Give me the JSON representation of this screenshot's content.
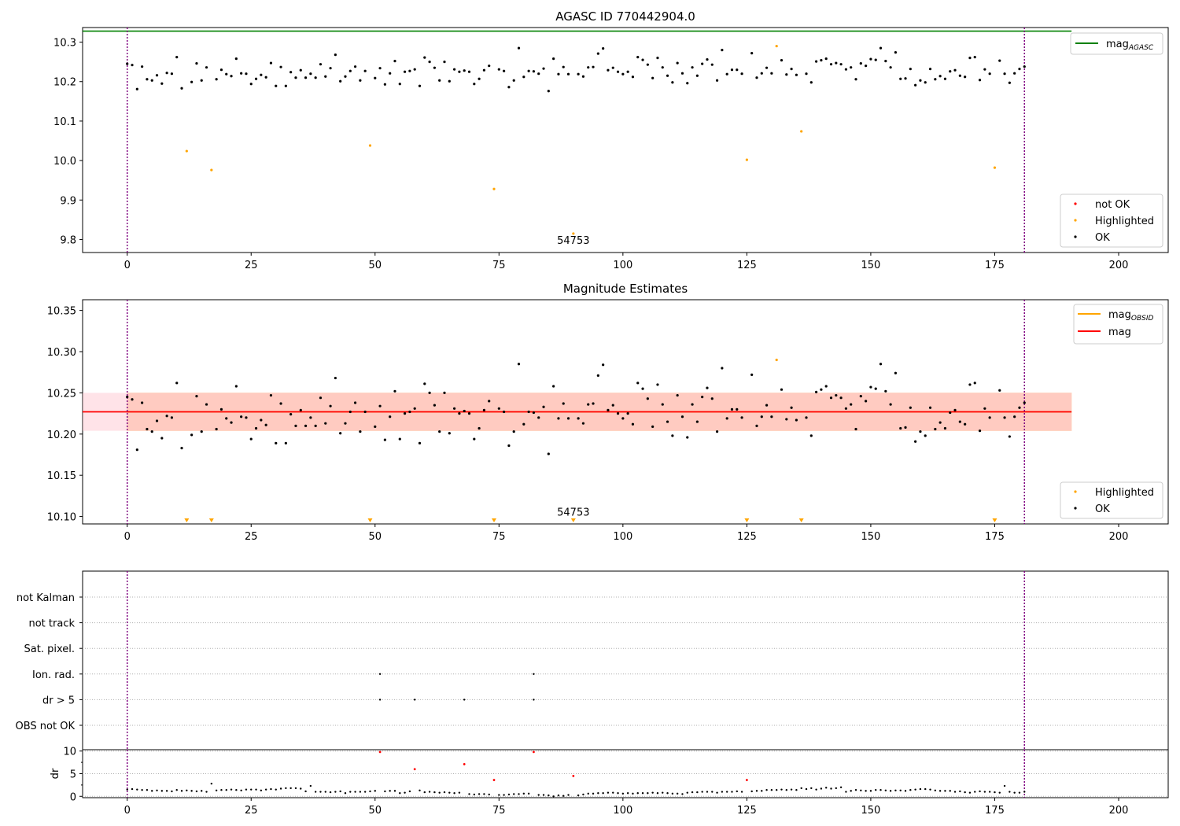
{
  "chart_data": [
    {
      "type": "scatter",
      "title": "AGASC ID 770442904.0",
      "xlim": [
        -9,
        210
      ],
      "ylim": [
        9.767,
        10.337
      ],
      "xticks": [
        0,
        25,
        50,
        75,
        100,
        125,
        150,
        175,
        200
      ],
      "yticks": [
        9.8,
        9.9,
        10.0,
        10.1,
        10.2,
        10.3
      ],
      "ytick_labels": [
        "9.8",
        "9.9",
        "10.0",
        "10.1",
        "10.2",
        "10.3"
      ],
      "vlines": [
        0,
        181
      ],
      "annotation": {
        "text": "54753",
        "x": 90,
        "y": 9.815
      },
      "mag_agasc": {
        "value": 10.328,
        "x_range": [
          -9,
          190.5
        ],
        "color": "#008000"
      },
      "ok_series": {
        "name": "OK",
        "color": "#000000"
      },
      "highlighted_series": {
        "name": "Highlighted",
        "color": "#ffa500"
      },
      "not_ok_series": {
        "name": "not OK",
        "color": "#ff0000"
      },
      "legend_upper": {
        "position": "top-right",
        "entries": [
          {
            "label": "mag",
            "sub": "AGASC",
            "color": "#008000"
          }
        ]
      },
      "legend_lower": {
        "position": "bottom-right",
        "entries": [
          "not OK",
          "Highlighted",
          "OK"
        ]
      }
    },
    {
      "type": "scatter",
      "title": "Magnitude Estimates",
      "xlim": [
        -9,
        210
      ],
      "ylim": [
        10.091,
        10.363
      ],
      "xticks": [
        0,
        25,
        50,
        75,
        100,
        125,
        150,
        175,
        200
      ],
      "yticks": [
        10.1,
        10.15,
        10.2,
        10.25,
        10.3,
        10.35
      ],
      "ytick_labels": [
        "10.10",
        "10.15",
        "10.20",
        "10.25",
        "10.30",
        "10.35"
      ],
      "vlines": [
        0,
        181
      ],
      "annotation": {
        "text": "54753",
        "x": 90,
        "y": 10.1
      },
      "mag": {
        "value": 10.227,
        "band": [
          10.204,
          10.25
        ],
        "x_range": [
          -9,
          190.5
        ],
        "color": "#ff0000",
        "band_color": "#ffc0cb"
      },
      "mag_obsid": {
        "value": 10.227,
        "band": [
          10.204,
          10.25
        ],
        "x_range": [
          0,
          190.5
        ],
        "color": "#ffa500"
      },
      "out_of_range_x": [
        12,
        17,
        49,
        74,
        90,
        125,
        136,
        175
      ],
      "legend_upper": {
        "position": "top-right",
        "entries": [
          {
            "label": "mag",
            "sub": "OBSID",
            "color": "#ffa500"
          },
          {
            "label": "mag",
            "sub": "",
            "color": "#ff0000"
          }
        ]
      },
      "legend_lower": {
        "position": "bottom-right",
        "entries": [
          "Highlighted",
          "OK"
        ]
      }
    },
    {
      "type": "scatter",
      "flag_panel": true,
      "xlim": [
        -9,
        210
      ],
      "vlines": [
        0,
        181
      ],
      "flag_labels": [
        "not Kalman",
        "not track",
        "Sat. pixel.",
        "Ion. rad.",
        "dr > 5",
        "OBS not OK"
      ],
      "flags": [
        {
          "label": "Ion. rad.",
          "x": [
            51,
            82
          ]
        },
        {
          "label": "dr > 5",
          "x": [
            51,
            58,
            68,
            82
          ]
        }
      ]
    },
    {
      "type": "scatter",
      "ylabel": "dr",
      "xlim": [
        -9,
        210
      ],
      "ylim": [
        -0.3,
        10.3
      ],
      "xticks": [
        0,
        25,
        50,
        75,
        100,
        125,
        150,
        175,
        200
      ],
      "yticks": [
        0,
        5,
        10
      ],
      "ytick_labels": [
        "0",
        "5",
        "10"
      ],
      "vlines": [
        0,
        181
      ],
      "highlight_dr": [
        {
          "x": 51,
          "y": 9.8
        },
        {
          "x": 58,
          "y": 6.0
        },
        {
          "x": 68,
          "y": 7.1
        },
        {
          "x": 74,
          "y": 3.6
        },
        {
          "x": 82,
          "y": 9.8
        },
        {
          "x": 90,
          "y": 4.5
        },
        {
          "x": 125,
          "y": 3.6
        }
      ]
    }
  ],
  "observations": {
    "x": [
      0,
      1,
      2,
      3,
      4,
      5,
      6,
      7,
      8,
      9,
      10,
      11,
      12,
      13,
      14,
      15,
      16,
      17,
      18,
      19,
      20,
      21,
      22,
      23,
      24,
      25,
      26,
      27,
      28,
      29,
      30,
      31,
      32,
      33,
      34,
      35,
      36,
      37,
      38,
      39,
      40,
      41,
      42,
      43,
      44,
      45,
      46,
      47,
      48,
      49,
      50,
      51,
      52,
      53,
      54,
      55,
      56,
      57,
      58,
      59,
      60,
      61,
      62,
      63,
      64,
      65,
      66,
      67,
      68,
      69,
      70,
      71,
      72,
      73,
      74,
      75,
      76,
      77,
      78,
      79,
      80,
      81,
      82,
      83,
      84,
      85,
      86,
      87,
      88,
      89,
      90,
      91,
      92,
      93,
      94,
      95,
      96,
      97,
      98,
      99,
      100,
      101,
      102,
      103,
      104,
      105,
      106,
      107,
      108,
      109,
      110,
      111,
      112,
      113,
      114,
      115,
      116,
      117,
      118,
      119,
      120,
      121,
      122,
      123,
      124,
      125,
      126,
      127,
      128,
      129,
      130,
      131,
      132,
      133,
      134,
      135,
      136,
      137,
      138,
      139,
      140,
      141,
      142,
      143,
      144,
      145,
      146,
      147,
      148,
      149,
      150,
      151,
      152,
      153,
      154,
      155,
      156,
      157,
      158,
      159,
      160,
      161,
      162,
      163,
      164,
      165,
      166,
      167,
      168,
      169,
      170,
      171,
      172,
      173,
      174,
      175,
      176,
      177,
      178,
      179,
      180,
      181
    ],
    "mag": [
      10.245,
      10.242,
      10.181,
      10.238,
      10.206,
      10.203,
      10.216,
      10.195,
      10.222,
      10.22,
      10.262,
      10.183,
      10.237,
      10.199,
      10.246,
      10.203,
      10.236,
      10.236,
      10.206,
      10.23,
      10.219,
      10.214,
      10.258,
      10.221,
      10.22,
      10.194,
      10.207,
      10.217,
      10.211,
      10.247,
      10.189,
      10.237,
      10.189,
      10.224,
      10.21,
      10.229,
      10.21,
      10.22,
      10.21,
      10.244,
      10.213,
      10.234,
      10.268,
      10.201,
      10.213,
      10.227,
      10.238,
      10.203,
      10.227,
      10.038,
      10.209,
      10.234,
      10.193,
      10.221,
      10.252,
      10.194,
      10.225,
      10.227,
      10.231,
      10.189,
      10.261,
      10.25,
      10.235,
      10.203,
      10.25,
      10.201,
      10.231,
      10.225,
      10.228,
      10.225,
      10.194,
      10.207,
      10.229,
      10.24,
      10.228,
      10.231,
      10.227,
      10.186,
      10.203,
      10.285,
      10.212,
      10.227,
      10.226,
      10.22,
      10.233,
      10.176,
      10.258,
      10.219,
      10.237,
      10.219,
      10.227,
      10.219,
      10.213,
      10.236,
      10.237,
      10.271,
      10.284,
      10.229,
      10.235,
      10.225,
      10.219,
      10.225,
      10.212,
      10.262,
      10.255,
      10.243,
      10.209,
      10.26,
      10.236,
      10.215,
      10.198,
      10.247,
      10.221,
      10.196,
      10.236,
      10.215,
      10.245,
      10.256,
      10.243,
      10.203,
      10.28,
      10.219,
      10.23,
      10.23,
      10.22,
      10.227,
      10.272,
      10.21,
      10.221,
      10.235,
      10.221,
      10.227,
      10.254,
      10.218,
      10.232,
      10.217,
      10.227,
      10.22,
      10.198,
      10.251,
      10.254,
      10.258,
      10.244,
      10.247,
      10.244,
      10.231,
      10.236,
      10.206,
      10.246,
      10.24,
      10.257,
      10.255,
      10.285,
      10.252,
      10.236,
      10.274,
      10.207,
      10.208,
      10.232,
      10.191,
      10.203,
      10.198,
      10.232,
      10.206,
      10.214,
      10.207,
      10.226,
      10.229,
      10.215,
      10.212,
      10.26,
      10.262,
      10.204,
      10.231,
      10.22,
      10.227,
      10.253,
      10.22,
      10.197,
      10.221,
      10.232,
      10.238
    ],
    "dr": [
      1.5,
      1.6,
      1.5,
      1.4,
      1.4,
      1.2,
      1.3,
      1.2,
      1.2,
      1.1,
      1.4,
      1.2,
      1.3,
      1.2,
      1.1,
      1.2,
      1.0,
      2.8,
      1.3,
      1.4,
      1.4,
      1.5,
      1.4,
      1.3,
      1.5,
      1.5,
      1.5,
      1.3,
      1.5,
      1.6,
      1.5,
      1.7,
      1.8,
      1.8,
      1.8,
      1.7,
      1.1,
      2.3,
      1.0,
      1.0,
      1.0,
      0.9,
      1.0,
      1.1,
      0.7,
      1.0,
      1.0,
      1.0,
      1.0,
      1.1,
      1.2,
      1.4,
      1.1,
      1.2,
      1.2,
      0.7,
      0.8,
      1.1,
      1.2,
      1.3,
      0.9,
      1.0,
      0.9,
      0.8,
      0.9,
      0.8,
      0.7,
      0.8,
      0.8,
      0.5,
      0.4,
      0.5,
      0.5,
      0.4,
      0.4,
      0.3,
      0.3,
      0.4,
      0.5,
      0.5,
      0.6,
      0.6,
      0.5,
      0.3,
      0.3,
      0.2,
      0.0,
      0.2,
      0.1,
      0.3,
      0.4,
      0.2,
      0.4,
      0.6,
      0.6,
      0.7,
      0.7,
      0.8,
      0.8,
      0.7,
      0.6,
      0.7,
      0.6,
      0.7,
      0.7,
      0.7,
      0.8,
      0.7,
      0.8,
      0.7,
      0.6,
      0.6,
      0.5,
      0.8,
      0.9,
      0.9,
      1.0,
      1.0,
      1.0,
      0.8,
      1.0,
      1.0,
      1.0,
      1.1,
      1.0,
      1.2,
      1.1,
      1.2,
      1.2,
      1.4,
      1.4,
      1.4,
      1.5,
      1.4,
      1.5,
      1.4,
      1.8,
      1.6,
      1.8,
      1.5,
      1.7,
      1.9,
      1.7,
      1.8,
      2.0,
      1.0,
      1.2,
      1.4,
      1.3,
      1.2,
      1.2,
      1.4,
      1.4,
      1.3,
      1.2,
      1.3,
      1.3,
      1.2,
      1.4,
      1.5,
      1.6,
      1.6,
      1.5,
      1.3,
      1.2,
      1.2,
      1.2,
      1.0,
      1.1,
      0.9,
      0.8,
      1.0,
      1.1,
      1.0,
      1.0,
      0.9,
      0.8,
      2.3,
      1.0,
      0.8,
      0.8,
      1.0,
      0.7,
      0.8
    ],
    "highlighted": {
      "x": [
        12,
        17,
        49,
        74,
        90,
        125,
        131,
        136,
        175
      ],
      "mag": [
        10.024,
        9.976,
        10.038,
        9.928,
        9.815,
        10.002,
        10.29,
        10.074,
        9.982
      ]
    }
  }
}
